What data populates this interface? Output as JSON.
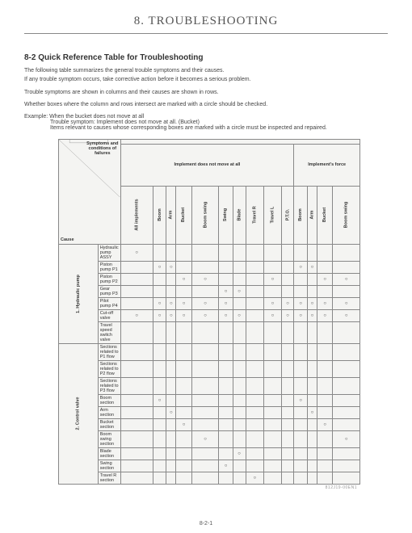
{
  "chapter_title": "8. TROUBLESHOOTING",
  "section_heading": "8-2    Quick Reference Table for Troubleshooting",
  "intro_p1": "The following table summarizes the general trouble symptoms and their causes.",
  "intro_p2": "If any trouble symptom occurs, take corrective action before it becomes a serious problem.",
  "intro_p3": "Trouble symptoms are shown in columns and their causes are shown in rows.",
  "intro_p4": "Whether boxes where the column and rows intersect are marked with a circle should be checked.",
  "example": {
    "line1": "Example: When the bucket does not move at all",
    "line2": "Trouble symptom: Implement does not move at all. (Bucket)",
    "line3": "Items relevant to causes whose corresponding boxes are marked with a circle must be inspected and repaired."
  },
  "table": {
    "corner_sym": "Symptoms and conditions of failures",
    "corner_cause": "Cause",
    "col_groups": [
      {
        "label": "Implement does not move at all",
        "span": 10
      },
      {
        "label": "Implement's force",
        "span": 4
      }
    ],
    "columns": [
      "All implements",
      "Boom",
      "Arm",
      "Bucket",
      "Boom swing",
      "Swing",
      "Blade",
      "Travel R",
      "Travel L",
      "P.T.O.",
      "Boom",
      "Arm",
      "Bucket",
      "Boom swing"
    ],
    "row_groups": [
      {
        "label": "1. Hydraulic pump",
        "rows": [
          {
            "label": "Hydraulic pump ASSY",
            "marks": [
              0
            ]
          },
          {
            "label": "Piston pump P1",
            "marks": [
              1,
              2,
              10,
              11
            ]
          },
          {
            "label": "Piston pump P2",
            "marks": [
              3,
              4,
              8,
              12,
              13
            ]
          },
          {
            "label": "Gear pump P3",
            "marks": [
              5,
              6
            ]
          },
          {
            "label": "Pilot pump P4",
            "marks": [
              1,
              2,
              3,
              4,
              5,
              8,
              9,
              10,
              11,
              12,
              13
            ]
          },
          {
            "label": "Cut-off valve",
            "marks": [
              0,
              1,
              2,
              3,
              4,
              5,
              6,
              8,
              9,
              10,
              11,
              12,
              13
            ]
          },
          {
            "label": "Travel speed switch valve",
            "marks": []
          }
        ]
      },
      {
        "label": "2. Control valve",
        "rows": [
          {
            "label": "Sections related to P1 flow",
            "marks": []
          },
          {
            "label": "Sections related to P2 flow",
            "marks": []
          },
          {
            "label": "Sections related to P3 flow",
            "marks": []
          },
          {
            "label": "Boom section",
            "marks": [
              1,
              10
            ]
          },
          {
            "label": "Arm section",
            "marks": [
              2,
              11
            ]
          },
          {
            "label": "Bucket section",
            "marks": [
              3,
              12
            ]
          },
          {
            "label": "Boom swing section",
            "marks": [
              4,
              13
            ]
          },
          {
            "label": "Blade section",
            "marks": [
              6
            ]
          },
          {
            "label": "Swing section",
            "marks": [
              5
            ]
          },
          {
            "label": "Travel R section",
            "marks": [
              7
            ]
          }
        ]
      }
    ],
    "mark_glyph": "○",
    "ref": "812J19-00EN1"
  },
  "page_number": "8-2-1"
}
